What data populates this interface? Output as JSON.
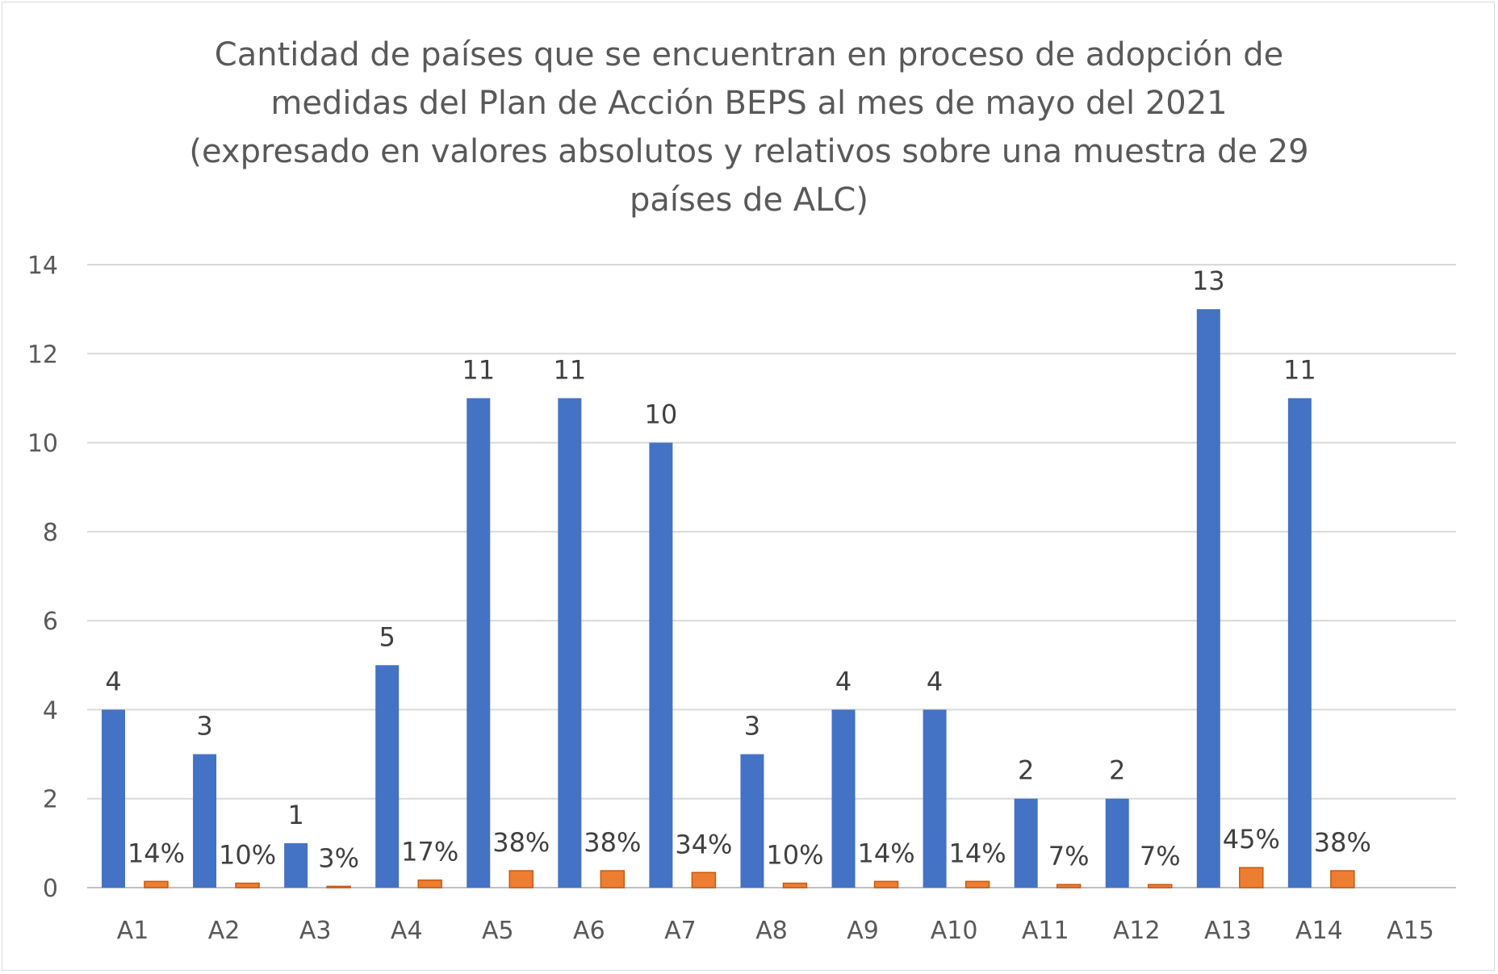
{
  "chart_data": {
    "type": "bar",
    "title_lines": [
      "Cantidad de países que se encuentran en proceso de adopción de",
      "medidas del Plan de Acción BEPS al mes de mayo del 2021",
      "(expresado en valores absolutos y relativos sobre una muestra de 29",
      "países de ALC)"
    ],
    "xlabel": "",
    "ylabel": "",
    "ylim": [
      0,
      14
    ],
    "yticks": [
      "0",
      "2",
      "4",
      "6",
      "8",
      "10",
      "12",
      "14"
    ],
    "grid": true,
    "legend": "none",
    "categories": [
      "A1",
      "A2",
      "A3",
      "A4",
      "A5",
      "A6",
      "A7",
      "A8",
      "A9",
      "A10",
      "A11",
      "A12",
      "A13",
      "A14",
      "A15"
    ],
    "series": [
      {
        "color": "#4472c4",
        "values": [
          4,
          3,
          1,
          5,
          11,
          11,
          10,
          3,
          4,
          4,
          2,
          2,
          13,
          11,
          null
        ],
        "labels": [
          "4",
          "3",
          "1",
          "5",
          "11",
          "11",
          "10",
          "3",
          "4",
          "4",
          "2",
          "2",
          "13",
          "11",
          ""
        ]
      },
      {
        "color": "#ed7d31",
        "values": [
          0.14,
          0.1,
          0.03,
          0.17,
          0.38,
          0.38,
          0.34,
          0.1,
          0.14,
          0.14,
          0.07,
          0.07,
          0.45,
          0.38,
          null
        ],
        "labels": [
          "14%",
          "10%",
          "3%",
          "17%",
          "38%",
          "38%",
          "34%",
          "10%",
          "14%",
          "14%",
          "7%",
          "7%",
          "45%",
          "38%",
          ""
        ]
      }
    ]
  }
}
